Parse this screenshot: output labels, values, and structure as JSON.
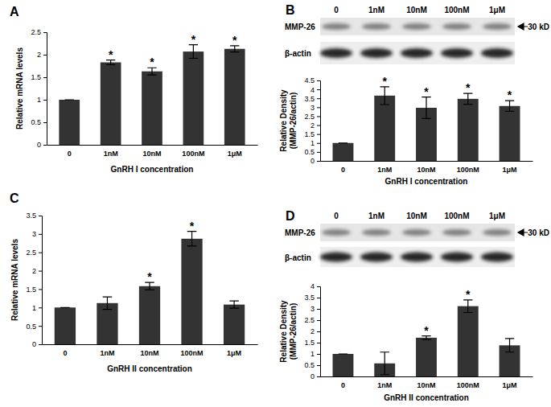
{
  "chart_data": [
    {
      "type": "bar",
      "title": "A",
      "xlabel": "GnRH I concentration",
      "ylabel": [
        "Relative mRNA levels"
      ],
      "categories": [
        "0",
        "1nM",
        "10nM",
        "100nM",
        "1μM"
      ],
      "values": [
        1,
        1.83,
        1.63,
        2.07,
        2.13
      ],
      "errors": [
        0,
        0.05,
        0.08,
        0.15,
        0.07
      ],
      "color": "#333333",
      "ylim": [
        0,
        2.5
      ],
      "yticks": [
        0,
        0.5,
        1,
        1.5,
        2,
        2.5
      ],
      "grid": false,
      "annotations": [
        {
          "text": "*",
          "category": "1nM"
        },
        {
          "text": "*",
          "category": "10nM"
        },
        {
          "text": "*",
          "category": "100nM"
        },
        {
          "text": "*",
          "category": "1μM"
        }
      ]
    },
    {
      "type": "bar",
      "title": "B",
      "xlabel": "GnRH I concentration",
      "ylabel": [
        "Relative Density",
        "(MMP-26/actin)"
      ],
      "categories": [
        "0",
        "1nM",
        "10nM",
        "100nM",
        "1μM"
      ],
      "values": [
        1,
        3.65,
        2.97,
        3.47,
        3.07
      ],
      "errors": [
        0,
        0.5,
        0.6,
        0.3,
        0.3
      ],
      "color": "#333333",
      "ylim": [
        0,
        4.5
      ],
      "yticks": [
        0,
        0.5,
        1,
        1.5,
        2,
        2.5,
        3,
        3.5,
        4,
        4.5
      ],
      "grid": false,
      "annotations": [
        {
          "text": "*",
          "category": "1nM"
        },
        {
          "text": "*",
          "category": "10nM"
        },
        {
          "text": "*",
          "category": "100nM"
        },
        {
          "text": "*",
          "category": "1μM"
        }
      ],
      "blot": {
        "lanes": [
          "0",
          "1nM",
          "10nM",
          "100nM",
          "1μM"
        ],
        "rows": [
          "MMP-26",
          "β-actin"
        ],
        "size_label": "30 kD"
      }
    },
    {
      "type": "bar",
      "title": "C",
      "xlabel": "GnRH II concentration",
      "ylabel": [
        "Relative mRNA levels"
      ],
      "categories": [
        "0",
        "1nM",
        "10nM",
        "100nM",
        "1μM"
      ],
      "values": [
        1,
        1.12,
        1.58,
        2.87,
        1.08
      ],
      "errors": [
        0,
        0.17,
        0.1,
        0.2,
        0.1
      ],
      "color": "#333333",
      "ylim": [
        0,
        3.5
      ],
      "yticks": [
        0,
        0.5,
        1,
        1.5,
        2,
        2.5,
        3,
        3.5
      ],
      "grid": false,
      "annotations": [
        {
          "text": "*",
          "category": "10nM"
        },
        {
          "text": "*",
          "category": "100nM"
        }
      ]
    },
    {
      "type": "bar",
      "title": "D",
      "xlabel": "GnRH II concentration",
      "ylabel": [
        "Relative Density",
        "(MMP-26/actin)"
      ],
      "categories": [
        "0",
        "1nM",
        "10nM",
        "100nM",
        "1μM"
      ],
      "values": [
        1,
        0.58,
        1.72,
        3.12,
        1.38
      ],
      "errors": [
        0,
        0.5,
        0.08,
        0.28,
        0.3
      ],
      "color": "#333333",
      "ylim": [
        0,
        4
      ],
      "yticks": [
        0,
        0.5,
        1,
        1.5,
        2,
        2.5,
        3,
        3.5,
        4
      ],
      "grid": false,
      "annotations": [
        {
          "text": "*",
          "category": "10nM"
        },
        {
          "text": "*",
          "category": "100nM"
        }
      ],
      "blot": {
        "lanes": [
          "0",
          "1nM",
          "10nM",
          "100nM",
          "1μM"
        ],
        "rows": [
          "MMP-26",
          "β-actin"
        ],
        "size_label": "30 kD"
      }
    }
  ]
}
